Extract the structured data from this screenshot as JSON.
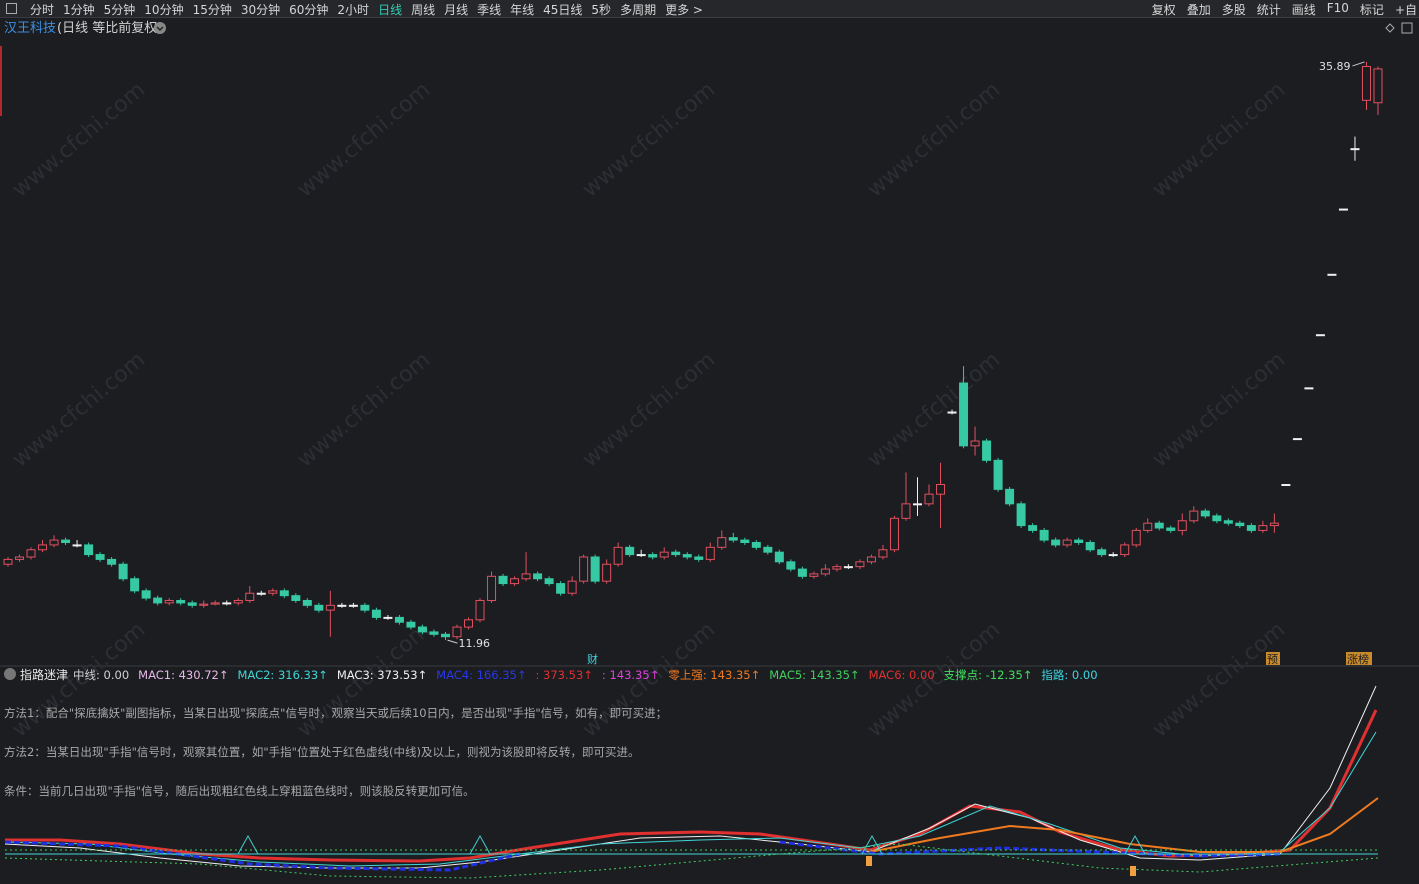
{
  "toolbar": {
    "left": [
      "分时",
      "1分钟",
      "5分钟",
      "10分钟",
      "15分钟",
      "30分钟",
      "60分钟",
      "2小时",
      "日线",
      "周线",
      "月线",
      "季线",
      "年线",
      "45日线",
      "5秒",
      "多周期",
      "更多 >"
    ],
    "right": [
      "复权",
      "叠加",
      "多股",
      "统计",
      "画线",
      "F10",
      "标记",
      "+自"
    ]
  },
  "header": {
    "stock": "汉王科技",
    "mode": "(日线 等比前复权)"
  },
  "watermark": "www.cfchi.com",
  "chart_data": {
    "type": "candlestick",
    "ylim": [
      10.93,
      36.88
    ],
    "up_color": "#e0505f",
    "down_color": "#36c9a3",
    "candles": [
      [
        15.1,
        15.4,
        15.0,
        15.3
      ],
      [
        15.3,
        15.5,
        15.2,
        15.4
      ],
      [
        15.4,
        15.8,
        15.3,
        15.7
      ],
      [
        15.7,
        16.1,
        15.6,
        15.9
      ],
      [
        15.9,
        16.3,
        15.8,
        16.1
      ],
      [
        16.1,
        16.2,
        15.9,
        16.0
      ],
      [
        15.9,
        16.1,
        15.8,
        15.9
      ],
      [
        15.9,
        16.0,
        15.4,
        15.5
      ],
      [
        15.5,
        15.6,
        15.2,
        15.3
      ],
      [
        15.3,
        15.4,
        15.0,
        15.1
      ],
      [
        15.1,
        15.2,
        14.4,
        14.5
      ],
      [
        14.5,
        14.6,
        13.9,
        14.0
      ],
      [
        14.0,
        14.1,
        13.6,
        13.7
      ],
      [
        13.7,
        13.8,
        13.4,
        13.5
      ],
      [
        13.5,
        13.7,
        13.4,
        13.6
      ],
      [
        13.6,
        13.7,
        13.4,
        13.5
      ],
      [
        13.5,
        13.6,
        13.3,
        13.4
      ],
      [
        13.4,
        13.6,
        13.3,
        13.45
      ],
      [
        13.45,
        13.6,
        13.4,
        13.5
      ],
      [
        13.5,
        13.6,
        13.4,
        13.5
      ],
      [
        13.5,
        13.7,
        13.4,
        13.6
      ],
      [
        13.6,
        14.2,
        13.5,
        13.9
      ],
      [
        13.9,
        14.0,
        13.8,
        13.9
      ],
      [
        13.9,
        14.1,
        13.8,
        14.0
      ],
      [
        14.0,
        14.1,
        13.7,
        13.8
      ],
      [
        13.8,
        13.9,
        13.5,
        13.6
      ],
      [
        13.6,
        13.7,
        13.3,
        13.4
      ],
      [
        13.4,
        13.5,
        13.1,
        13.2
      ],
      [
        13.2,
        14.0,
        12.1,
        13.4
      ],
      [
        13.4,
        13.5,
        13.3,
        13.4
      ],
      [
        13.4,
        13.5,
        13.3,
        13.4
      ],
      [
        13.4,
        13.5,
        13.1,
        13.2
      ],
      [
        13.2,
        13.3,
        12.8,
        12.9
      ],
      [
        12.9,
        13.0,
        12.8,
        12.9
      ],
      [
        12.9,
        13.0,
        12.6,
        12.7
      ],
      [
        12.7,
        12.8,
        12.4,
        12.5
      ],
      [
        12.5,
        12.6,
        12.2,
        12.3
      ],
      [
        12.3,
        12.4,
        12.1,
        12.2
      ],
      [
        12.2,
        12.3,
        11.96,
        12.1
      ],
      [
        12.1,
        12.6,
        12.0,
        12.5
      ],
      [
        12.5,
        12.9,
        12.4,
        12.8
      ],
      [
        12.8,
        13.7,
        12.7,
        13.6
      ],
      [
        13.6,
        14.8,
        13.5,
        14.6
      ],
      [
        14.6,
        14.7,
        14.2,
        14.3
      ],
      [
        14.3,
        14.6,
        14.2,
        14.5
      ],
      [
        14.5,
        15.6,
        14.4,
        14.7
      ],
      [
        14.7,
        14.8,
        14.4,
        14.5
      ],
      [
        14.5,
        14.6,
        14.2,
        14.3
      ],
      [
        14.3,
        14.4,
        13.8,
        13.9
      ],
      [
        13.9,
        14.6,
        13.8,
        14.4
      ],
      [
        14.4,
        15.5,
        14.3,
        15.4
      ],
      [
        15.4,
        15.5,
        14.3,
        14.4
      ],
      [
        14.4,
        15.3,
        14.3,
        15.1
      ],
      [
        15.1,
        16.0,
        15.0,
        15.8
      ],
      [
        15.8,
        15.9,
        15.4,
        15.5
      ],
      [
        15.5,
        15.7,
        15.4,
        15.5
      ],
      [
        15.5,
        15.6,
        15.3,
        15.4
      ],
      [
        15.4,
        15.8,
        15.3,
        15.6
      ],
      [
        15.6,
        15.7,
        15.4,
        15.5
      ],
      [
        15.5,
        15.6,
        15.3,
        15.4
      ],
      [
        15.4,
        15.5,
        15.2,
        15.3
      ],
      [
        15.3,
        16.0,
        15.2,
        15.8
      ],
      [
        15.8,
        16.5,
        15.7,
        16.2
      ],
      [
        16.2,
        16.4,
        16.0,
        16.1
      ],
      [
        16.1,
        16.2,
        15.9,
        16.0
      ],
      [
        16.0,
        16.1,
        15.7,
        15.8
      ],
      [
        15.8,
        15.9,
        15.5,
        15.6
      ],
      [
        15.6,
        15.7,
        15.1,
        15.2
      ],
      [
        15.2,
        15.3,
        14.8,
        14.9
      ],
      [
        14.9,
        15.0,
        14.5,
        14.6
      ],
      [
        14.6,
        14.8,
        14.5,
        14.7
      ],
      [
        14.7,
        15.1,
        14.6,
        14.9
      ],
      [
        14.9,
        15.1,
        14.8,
        15.0
      ],
      [
        15.0,
        15.1,
        14.9,
        15.0
      ],
      [
        15.0,
        15.3,
        14.9,
        15.2
      ],
      [
        15.2,
        15.5,
        15.1,
        15.4
      ],
      [
        15.4,
        15.9,
        15.3,
        15.7
      ],
      [
        15.7,
        17.1,
        15.6,
        17.0
      ],
      [
        17.0,
        18.9,
        16.9,
        17.6
      ],
      [
        17.6,
        18.7,
        17.1,
        17.6
      ],
      [
        17.6,
        18.4,
        17.5,
        18.0
      ],
      [
        18.0,
        19.3,
        16.6,
        18.4
      ],
      [
        21.4,
        21.5,
        21.3,
        21.4
      ],
      [
        22.6,
        23.3,
        19.9,
        20.0
      ],
      [
        20.0,
        20.8,
        19.6,
        20.2
      ],
      [
        20.2,
        20.3,
        19.3,
        19.4
      ],
      [
        19.4,
        19.5,
        18.1,
        18.2
      ],
      [
        18.2,
        18.3,
        17.5,
        17.6
      ],
      [
        17.6,
        17.7,
        16.6,
        16.7
      ],
      [
        16.7,
        16.8,
        16.4,
        16.5
      ],
      [
        16.5,
        16.6,
        16.0,
        16.1
      ],
      [
        16.1,
        16.2,
        15.8,
        15.9
      ],
      [
        15.9,
        16.2,
        15.8,
        16.1
      ],
      [
        16.1,
        16.2,
        15.9,
        16.0
      ],
      [
        16.0,
        16.1,
        15.6,
        15.7
      ],
      [
        15.7,
        15.8,
        15.4,
        15.5
      ],
      [
        15.5,
        15.6,
        15.4,
        15.5
      ],
      [
        15.5,
        16.0,
        15.4,
        15.9
      ],
      [
        15.9,
        16.6,
        15.8,
        16.5
      ],
      [
        16.5,
        17.0,
        16.4,
        16.8
      ],
      [
        16.8,
        16.9,
        16.5,
        16.6
      ],
      [
        16.6,
        16.7,
        16.4,
        16.5
      ],
      [
        16.5,
        17.2,
        16.3,
        16.9
      ],
      [
        16.9,
        17.5,
        16.8,
        17.3
      ],
      [
        17.3,
        17.4,
        17.0,
        17.1
      ],
      [
        17.1,
        17.2,
        16.8,
        16.9
      ],
      [
        16.9,
        17.0,
        16.7,
        16.8
      ],
      [
        16.8,
        16.9,
        16.6,
        16.7
      ],
      [
        16.7,
        16.8,
        16.4,
        16.5
      ],
      [
        16.5,
        16.9,
        16.4,
        16.7
      ],
      [
        16.7,
        17.2,
        16.4,
        16.8
      ],
      [
        18.4,
        18.4,
        18.4,
        18.4
      ],
      [
        20.3,
        20.3,
        20.3,
        20.3
      ],
      [
        22.4,
        22.4,
        22.4,
        22.4
      ],
      [
        24.6,
        24.6,
        24.6,
        24.6
      ],
      [
        27.1,
        27.1,
        27.1,
        27.1
      ],
      [
        29.8,
        29.8,
        29.8,
        29.8
      ],
      [
        32.3,
        32.8,
        31.8,
        32.3
      ],
      [
        34.3,
        35.89,
        33.9,
        35.7
      ],
      [
        34.2,
        35.7,
        33.7,
        35.6
      ]
    ],
    "high_label": {
      "value": 35.89,
      "label": "35.89"
    },
    "low_label": {
      "value": 11.96,
      "label": "11.96"
    },
    "markers": [
      "财",
      "预",
      "涨榜"
    ]
  },
  "indicator": {
    "name": "指路迷津",
    "legend": [
      "中线: 0.00",
      "MAC1: 430.72↑",
      "MAC2: 316.33↑",
      "MAC3: 373.53↑",
      "MAC4: 166.35↑",
      ": 373.53↑",
      ": 143.35↑",
      "零上强: 143.35↑",
      "MAC5: 143.35↑",
      "MAC6: 0.00",
      "支撑点: -12.35↑",
      "指路: 0.00"
    ],
    "notes": [
      "方法1：配合\"探底擒妖\"副图指标，当某日出现\"探底点\"信号时，观察当天或后续10日内，是否出现\"手指\"信号，如有，即可买进；",
      "方法2：当某日出现\"手指\"信号时，观察其位置，如\"手指\"位置处于红色虚线(中线)及以上，则视为该股即将反转，即可买进。",
      "条件：当前几日出现\"手指\"信号，随后出现粗红色线上穿粗蓝色线时，则该股反转更加可信。"
    ]
  }
}
